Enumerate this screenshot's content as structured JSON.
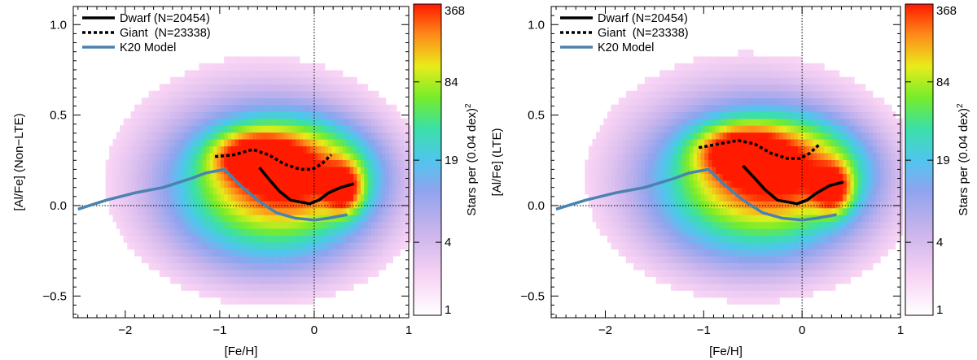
{
  "chart_data": [
    {
      "type": "heatmap",
      "panel": "left",
      "xlabel": "[Fe/H]",
      "ylabel": "[Al/Fe] (Non−LTE)",
      "xlim": [
        -2.55,
        1.0
      ],
      "ylim": [
        -0.62,
        1.1
      ],
      "xticks": [
        {
          "v": -2,
          "label": "−2"
        },
        {
          "v": -1,
          "label": "−1"
        },
        {
          "v": 0,
          "label": "0"
        },
        {
          "v": 1,
          "label": "1"
        }
      ],
      "yticks": [
        {
          "v": -0.5,
          "label": "−0.5"
        },
        {
          "v": 0.0,
          "label": "0.0"
        },
        {
          "v": 0.5,
          "label": "0.5"
        },
        {
          "v": 1.0,
          "label": "1.0"
        }
      ],
      "reference_lines": {
        "x": 0,
        "y": 0
      },
      "legend": [
        {
          "label": "Dwarf (N=20454)",
          "style": "solid",
          "color": "#000000"
        },
        {
          "label": "Giant  (N=23338)",
          "style": "dotted",
          "color": "#000000"
        },
        {
          "label": "K20 Model",
          "style": "solid",
          "color": "#4a82b0"
        }
      ],
      "series": [
        {
          "name": "Dwarf",
          "x": [
            -0.58,
            -0.47,
            -0.37,
            -0.25,
            -0.05,
            0.05,
            0.15,
            0.28,
            0.42
          ],
          "y": [
            0.21,
            0.14,
            0.08,
            0.03,
            0.01,
            0.03,
            0.07,
            0.1,
            0.12
          ]
        },
        {
          "name": "Giant",
          "x": [
            -1.05,
            -0.85,
            -0.65,
            -0.48,
            -0.32,
            -0.15,
            -0.02,
            0.08,
            0.18
          ],
          "y": [
            0.27,
            0.28,
            0.31,
            0.28,
            0.23,
            0.2,
            0.2,
            0.23,
            0.28
          ]
        },
        {
          "name": "K20 Model",
          "x": [
            -2.5,
            -2.2,
            -1.9,
            -1.6,
            -1.3,
            -1.15,
            -0.95,
            -0.8,
            -0.6,
            -0.4,
            -0.2,
            0.0,
            0.15,
            0.35
          ],
          "y": [
            -0.02,
            0.03,
            0.07,
            0.1,
            0.15,
            0.18,
            0.2,
            0.12,
            0.03,
            -0.04,
            -0.07,
            -0.08,
            -0.07,
            -0.05
          ]
        }
      ],
      "density_peaks": [
        {
          "x": -0.6,
          "y": 0.27,
          "sx": 0.26,
          "sy": 0.08,
          "w": 1.0
        },
        {
          "x": 0.3,
          "y": 0.1,
          "sx": 0.12,
          "sy": 0.08,
          "w": 1.0
        },
        {
          "x": -0.25,
          "y": 0.18,
          "sx": 0.45,
          "sy": 0.15,
          "w": 0.8
        },
        {
          "x": -0.45,
          "y": 0.08,
          "sx": 0.65,
          "sy": 0.25,
          "w": 0.45
        },
        {
          "x": -0.6,
          "y": 0.2,
          "sx": 0.95,
          "sy": 0.4,
          "w": 0.1
        }
      ],
      "colorbar": {
        "label": "Stars per (0.04 dex)",
        "label_sup": "2",
        "min": 1,
        "max": 368,
        "ticks": [
          "368",
          "84",
          "19",
          "4",
          "1"
        ]
      }
    },
    {
      "type": "heatmap",
      "panel": "right",
      "xlabel": "[Fe/H]",
      "ylabel": "[Al/Fe] (LTE)",
      "xlim": [
        -2.55,
        1.0
      ],
      "ylim": [
        -0.62,
        1.1
      ],
      "xticks": [
        {
          "v": -2,
          "label": "−2"
        },
        {
          "v": -1,
          "label": "−1"
        },
        {
          "v": 0,
          "label": "0"
        },
        {
          "v": 1,
          "label": "1"
        }
      ],
      "yticks": [
        {
          "v": -0.5,
          "label": "−0.5"
        },
        {
          "v": 0.0,
          "label": "0.0"
        },
        {
          "v": 0.5,
          "label": "0.5"
        },
        {
          "v": 1.0,
          "label": "1.0"
        }
      ],
      "reference_lines": {
        "x": 0,
        "y": 0
      },
      "legend": [
        {
          "label": "Dwarf (N=20454)",
          "style": "solid",
          "color": "#000000"
        },
        {
          "label": "Giant  (N=23338)",
          "style": "dotted",
          "color": "#000000"
        },
        {
          "label": "K20 Model",
          "style": "solid",
          "color": "#4a82b0"
        }
      ],
      "series": [
        {
          "name": "Dwarf",
          "x": [
            -0.6,
            -0.48,
            -0.38,
            -0.25,
            -0.05,
            0.05,
            0.15,
            0.28,
            0.42
          ],
          "y": [
            0.22,
            0.15,
            0.09,
            0.03,
            0.01,
            0.03,
            0.07,
            0.11,
            0.13
          ]
        },
        {
          "name": "Giant",
          "x": [
            -1.05,
            -0.85,
            -0.65,
            -0.48,
            -0.32,
            -0.15,
            -0.02,
            0.08,
            0.18
          ],
          "y": [
            0.32,
            0.34,
            0.36,
            0.34,
            0.29,
            0.26,
            0.26,
            0.29,
            0.34
          ]
        },
        {
          "name": "K20 Model",
          "x": [
            -2.5,
            -2.2,
            -1.9,
            -1.6,
            -1.3,
            -1.15,
            -0.95,
            -0.8,
            -0.6,
            -0.4,
            -0.2,
            0.0,
            0.15,
            0.35
          ],
          "y": [
            -0.02,
            0.03,
            0.07,
            0.1,
            0.15,
            0.18,
            0.2,
            0.12,
            0.03,
            -0.04,
            -0.07,
            -0.08,
            -0.07,
            -0.05
          ]
        }
      ],
      "density_peaks": [
        {
          "x": -0.6,
          "y": 0.3,
          "sx": 0.26,
          "sy": 0.08,
          "w": 1.0
        },
        {
          "x": 0.3,
          "y": 0.1,
          "sx": 0.12,
          "sy": 0.08,
          "w": 1.0
        },
        {
          "x": -0.25,
          "y": 0.2,
          "sx": 0.45,
          "sy": 0.15,
          "w": 0.8
        },
        {
          "x": -0.45,
          "y": 0.1,
          "sx": 0.65,
          "sy": 0.25,
          "w": 0.45
        },
        {
          "x": -0.6,
          "y": 0.22,
          "sx": 0.95,
          "sy": 0.4,
          "w": 0.1
        }
      ],
      "colorbar": {
        "label": "Stars per (0.04 dex)",
        "label_sup": "2",
        "min": 1,
        "max": 368,
        "ticks": [
          "368",
          "84",
          "19",
          "4",
          "1"
        ]
      }
    }
  ]
}
